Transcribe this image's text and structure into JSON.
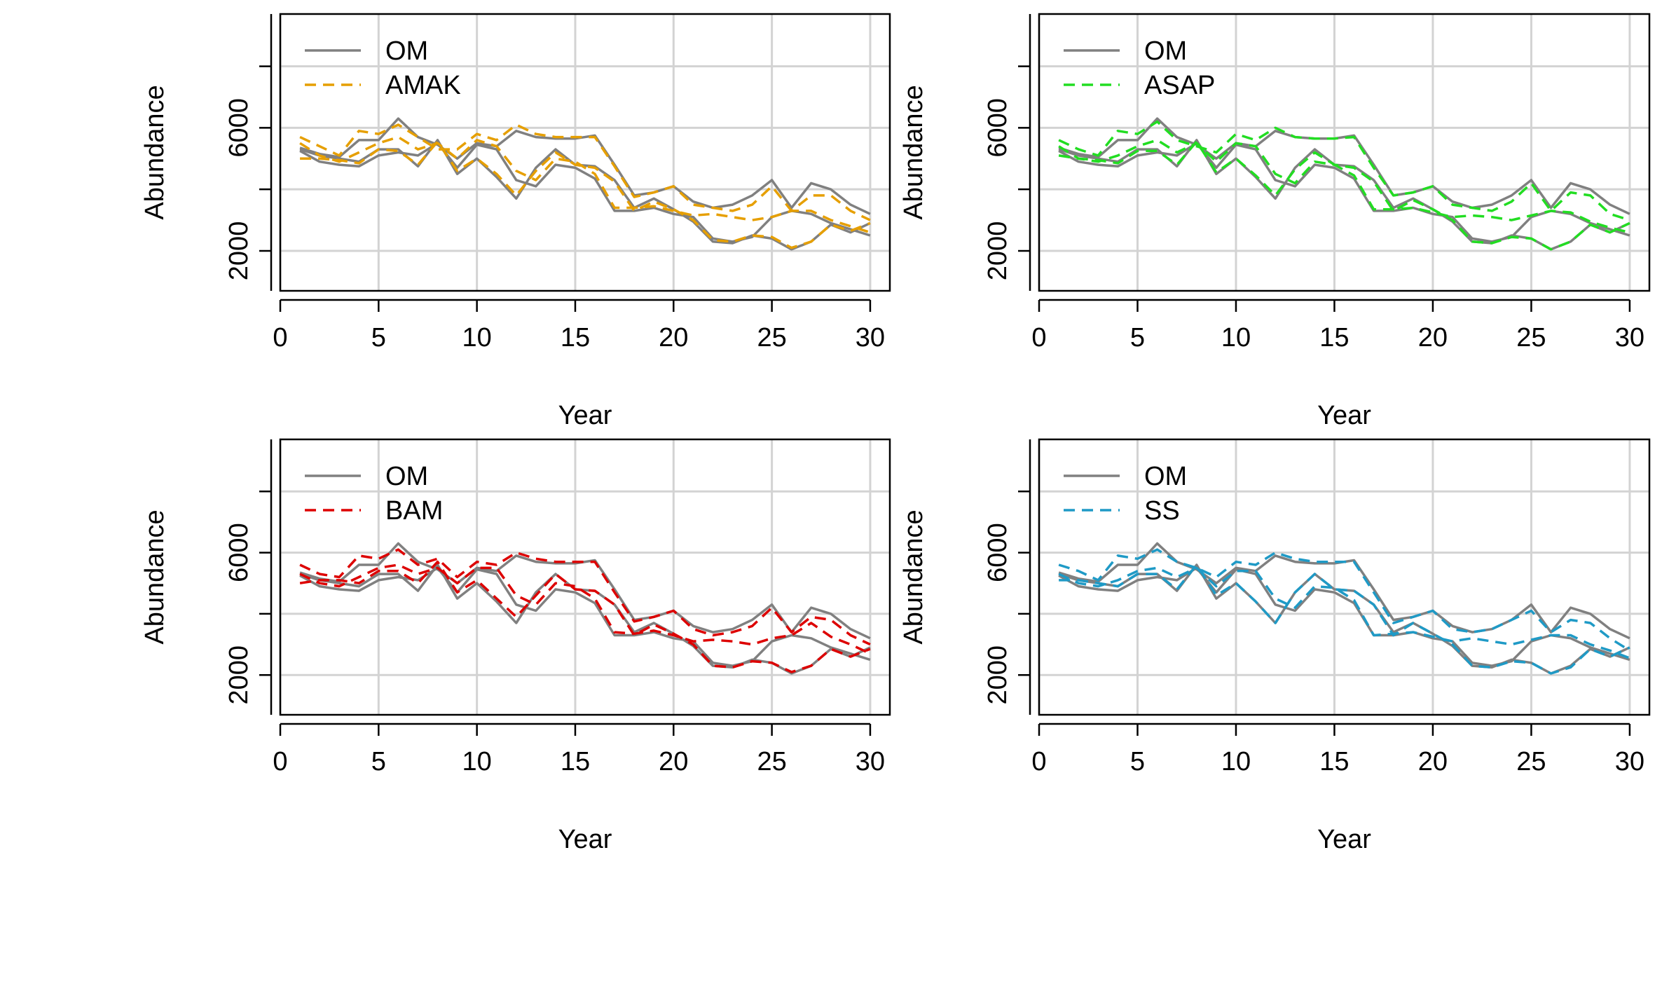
{
  "chart_data": [
    {
      "type": "line",
      "xlabel": "Year",
      "ylabel": "Abundance",
      "xlim": [
        0,
        31
      ],
      "ylim": [
        700,
        9700
      ],
      "x_ticks": [
        0,
        5,
        10,
        15,
        20,
        25,
        30
      ],
      "y_ticks": [
        2000,
        6000
      ],
      "y_grid": [
        2000,
        4000,
        6000,
        8000
      ],
      "grid": true,
      "legend_position": "top-left",
      "x": [
        1,
        2,
        3,
        4,
        5,
        6,
        7,
        8,
        9,
        10,
        11,
        12,
        13,
        14,
        15,
        16,
        17,
        18,
        19,
        20,
        21,
        22,
        23,
        24,
        25,
        26,
        27,
        28,
        29,
        30
      ],
      "series": [
        {
          "name": "OM",
          "role": "om",
          "style": "solid",
          "values": [
            5350,
            5150,
            5050,
            5600,
            5600,
            6300,
            5700,
            5450,
            5000,
            5500,
            5400,
            5900,
            5700,
            5650,
            5650,
            5750,
            4800,
            3800,
            3900,
            4100,
            3600,
            3400,
            3500,
            3800,
            4300,
            3400,
            4200,
            4000,
            3500,
            3200
          ]
        },
        {
          "name": "OM",
          "role": "om",
          "style": "solid",
          "values": [
            5300,
            5100,
            5000,
            4900,
            5300,
            5300,
            4750,
            5600,
            4500,
            5000,
            4400,
            3700,
            4700,
            5300,
            4800,
            4750,
            4300,
            3400,
            3700,
            3350,
            2950,
            2300,
            2250,
            2500,
            2400,
            2050,
            2300,
            2850,
            2600,
            2900
          ]
        },
        {
          "name": "OM",
          "role": "om",
          "style": "solid",
          "values": [
            5250,
            4900,
            4800,
            4750,
            5100,
            5200,
            5100,
            5500,
            4700,
            5450,
            5300,
            4300,
            4100,
            4800,
            4700,
            4350,
            3300,
            3300,
            3400,
            3200,
            3100,
            2400,
            2300,
            2450,
            3100,
            3300,
            3200,
            2900,
            2700,
            2500
          ]
        },
        {
          "name": "AMAK",
          "role": "model",
          "style": "dashed",
          "color": "#E69F00",
          "values": [
            5700,
            5400,
            5100,
            5900,
            5800,
            6100,
            5700,
            5300,
            5300,
            5800,
            5600,
            6100,
            5800,
            5700,
            5700,
            5700,
            4750,
            3750,
            3900,
            4100,
            3500,
            3400,
            3300,
            3500,
            4100,
            3300,
            3800,
            3800,
            3300,
            3000
          ]
        },
        {
          "name": "AMAK",
          "role": "model",
          "style": "dashed",
          "color": "#E69F00",
          "values": [
            5000,
            5000,
            4950,
            4850,
            5300,
            5250,
            4800,
            5550,
            4600,
            5000,
            4500,
            3800,
            4600,
            5200,
            4800,
            4700,
            4250,
            3300,
            3600,
            3350,
            3000,
            2350,
            2300,
            2500,
            2450,
            2100,
            2300,
            2850,
            2650,
            2900
          ]
        },
        {
          "name": "AMAK",
          "role": "model",
          "style": "dashed",
          "color": "#E69F00",
          "values": [
            5500,
            5100,
            4900,
            5200,
            5500,
            5700,
            5300,
            5500,
            5000,
            5600,
            5400,
            4600,
            4300,
            5000,
            4900,
            4500,
            3400,
            3400,
            3450,
            3300,
            3150,
            3200,
            3100,
            3000,
            3100,
            3300,
            3300,
            3000,
            2800,
            2600
          ]
        },
        {
          "name": "ASAP",
          "role": "model",
          "style": "dashed",
          "color": "#22DD22",
          "values": [
            5600,
            5300,
            5100,
            5900,
            5800,
            6200,
            5600,
            5400,
            5200,
            5800,
            5600,
            6000,
            5700,
            5650,
            5650,
            5700,
            4700,
            3800,
            3900,
            4100,
            3500,
            3400,
            3300,
            3600,
            4200,
            3300,
            3900,
            3800,
            3200,
            3000
          ]
        },
        {
          "name": "ASAP",
          "role": "model",
          "style": "dashed",
          "color": "#22DD22",
          "values": [
            5100,
            5000,
            4950,
            4850,
            5250,
            5250,
            4800,
            5550,
            4550,
            5000,
            4450,
            3800,
            4650,
            5200,
            4800,
            4700,
            4250,
            3300,
            3650,
            3350,
            3000,
            2300,
            2250,
            2450,
            2400,
            2050,
            2300,
            2850,
            2600,
            2900
          ]
        },
        {
          "name": "ASAP",
          "role": "model",
          "style": "dashed",
          "color": "#22DD22",
          "values": [
            5400,
            5000,
            4900,
            5100,
            5400,
            5600,
            5200,
            5500,
            4900,
            5500,
            5400,
            4500,
            4200,
            4900,
            4800,
            4450,
            3350,
            3350,
            3400,
            3250,
            3100,
            3150,
            3100,
            3000,
            3150,
            3300,
            3250,
            2950,
            2750,
            2600
          ]
        },
        {
          "name": "BAM",
          "role": "model",
          "style": "dashed",
          "color": "#DD0000",
          "values": [
            5600,
            5300,
            5200,
            5900,
            5800,
            6100,
            5600,
            5800,
            5200,
            5700,
            5600,
            6000,
            5800,
            5700,
            5700,
            5700,
            4700,
            3750,
            3900,
            4100,
            3500,
            3300,
            3400,
            3600,
            4200,
            3400,
            3900,
            3800,
            3300,
            3000
          ]
        },
        {
          "name": "BAM",
          "role": "model",
          "style": "dashed",
          "color": "#DD0000",
          "values": [
            5000,
            5100,
            5100,
            5000,
            5400,
            5400,
            5000,
            5700,
            4700,
            5100,
            4500,
            3900,
            4600,
            5300,
            4800,
            4750,
            4300,
            3300,
            3650,
            3350,
            3000,
            2300,
            2250,
            2450,
            2400,
            2100,
            2300,
            2850,
            2600,
            2850
          ]
        },
        {
          "name": "BAM",
          "role": "model",
          "style": "dashed",
          "color": "#DD0000",
          "values": [
            5300,
            5000,
            4900,
            5200,
            5500,
            5600,
            5300,
            5500,
            5000,
            5500,
            5500,
            4600,
            4300,
            5000,
            4900,
            4500,
            3400,
            3350,
            3450,
            3300,
            3100,
            3150,
            3100,
            3000,
            3200,
            3300,
            3700,
            3250,
            3000,
            2700
          ]
        },
        {
          "name": "SS",
          "role": "model",
          "style": "dashed",
          "color": "#1F9AC6",
          "values": [
            5600,
            5400,
            5100,
            5900,
            5800,
            6100,
            5700,
            5500,
            5200,
            5700,
            5600,
            6000,
            5800,
            5700,
            5700,
            5700,
            4700,
            3700,
            3900,
            4100,
            3500,
            3400,
            3500,
            3800,
            4100,
            3400,
            3800,
            3700,
            3200,
            2800
          ]
        },
        {
          "name": "SS",
          "role": "model",
          "style": "dashed",
          "color": "#1F9AC6",
          "values": [
            5100,
            5100,
            5000,
            4900,
            5300,
            5300,
            4800,
            5600,
            4600,
            5000,
            4400,
            3700,
            4700,
            5300,
            4800,
            4750,
            4300,
            3300,
            3700,
            3350,
            3000,
            2300,
            2250,
            2450,
            2400,
            2050,
            2250,
            2850,
            2600,
            2900
          ]
        },
        {
          "name": "SS",
          "role": "model",
          "style": "dashed",
          "color": "#1F9AC6",
          "values": [
            5300,
            5000,
            4900,
            5100,
            5400,
            5500,
            5200,
            5500,
            4900,
            5400,
            5400,
            4500,
            4200,
            4900,
            4850,
            4450,
            3300,
            3350,
            3400,
            3250,
            3100,
            3200,
            3100,
            3000,
            3150,
            3300,
            3300,
            3000,
            2800,
            2550
          ]
        }
      ],
      "panels": [
        {
          "legend": [
            "OM",
            "AMAK"
          ],
          "om_color": "#808080",
          "model": "AMAK",
          "model_color": "#E69F00"
        },
        {
          "legend": [
            "OM",
            "ASAP"
          ],
          "om_color": "#808080",
          "model": "ASAP",
          "model_color": "#22DD22"
        },
        {
          "legend": [
            "OM",
            "BAM"
          ],
          "om_color": "#808080",
          "model": "BAM",
          "model_color": "#DD0000"
        },
        {
          "legend": [
            "OM",
            "SS"
          ],
          "om_color": "#808080",
          "model": "SS",
          "model_color": "#1F9AC6"
        }
      ]
    }
  ]
}
